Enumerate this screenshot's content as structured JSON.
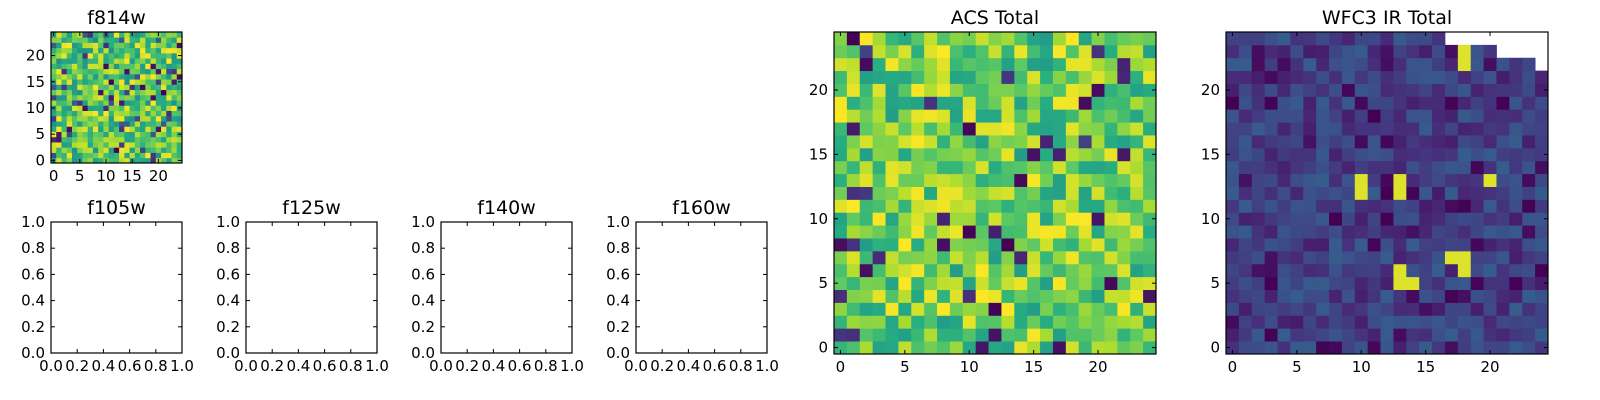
{
  "chart_data": [
    {
      "id": "f814w",
      "type": "heatmap",
      "title": "f814w",
      "grid_size": [
        25,
        25
      ],
      "xlim": [
        -0.5,
        24.5
      ],
      "ylim": [
        -0.5,
        24.5
      ],
      "xticks": [
        "0",
        "5",
        "10",
        "15",
        "20"
      ],
      "yticks": [
        "0",
        "5",
        "10",
        "15",
        "20"
      ],
      "colormap": "viridis",
      "note_values": "random-like high-valued texture (mostly green/yellow)",
      "seed": 3
    },
    {
      "id": "f105w",
      "type": "empty",
      "title": "f105w",
      "xlim": [
        0,
        1
      ],
      "ylim": [
        0,
        1
      ],
      "xticks": [
        "0.0",
        "0.2",
        "0.4",
        "0.6",
        "0.8",
        "1.0"
      ],
      "yticks": [
        "0.0",
        "0.2",
        "0.4",
        "0.6",
        "0.8",
        "1.0"
      ]
    },
    {
      "id": "f125w",
      "type": "empty",
      "title": "f125w",
      "xlim": [
        0,
        1
      ],
      "ylim": [
        0,
        1
      ],
      "xticks": [
        "0.0",
        "0.2",
        "0.4",
        "0.6",
        "0.8",
        "1.0"
      ],
      "yticks": [
        "0.0",
        "0.2",
        "0.4",
        "0.6",
        "0.8",
        "1.0"
      ]
    },
    {
      "id": "f140w",
      "type": "empty",
      "title": "f140w",
      "xlim": [
        0,
        1
      ],
      "ylim": [
        0,
        1
      ],
      "xticks": [
        "0.0",
        "0.2",
        "0.4",
        "0.6",
        "0.8",
        "1.0"
      ],
      "yticks": [
        "0.0",
        "0.2",
        "0.4",
        "0.6",
        "0.8",
        "1.0"
      ]
    },
    {
      "id": "f160w",
      "type": "empty",
      "title": "f160w",
      "xlim": [
        0,
        1
      ],
      "ylim": [
        0,
        1
      ],
      "xticks": [
        "0.0",
        "0.2",
        "0.4",
        "0.6",
        "0.8",
        "1.0"
      ],
      "yticks": [
        "0.0",
        "0.2",
        "0.4",
        "0.6",
        "0.8",
        "1.0"
      ]
    },
    {
      "id": "acs-total",
      "type": "heatmap",
      "title": "ACS Total",
      "grid_size": [
        25,
        25
      ],
      "xlim": [
        -0.5,
        24.5
      ],
      "ylim": [
        -0.5,
        24.5
      ],
      "xticks": [
        "0",
        "5",
        "10",
        "15",
        "20"
      ],
      "yticks": [
        "0",
        "5",
        "10",
        "15",
        "20"
      ],
      "colormap": "viridis",
      "seed": 11
    },
    {
      "id": "wfc3-ir-total",
      "type": "heatmap",
      "title": "WFC3 IR Total",
      "grid_size": [
        25,
        25
      ],
      "xlim": [
        -0.5,
        24.5
      ],
      "ylim": [
        -0.5,
        24.5
      ],
      "xticks": [
        "0",
        "5",
        "10",
        "15",
        "20"
      ],
      "yticks": [
        "0",
        "5",
        "10",
        "15",
        "20"
      ],
      "colormap": "viridis",
      "seed": 29,
      "bright_pixels": [
        [
          10,
          12
        ],
        [
          10,
          13
        ],
        [
          13,
          12
        ],
        [
          13,
          13
        ],
        [
          18,
          6
        ],
        [
          18,
          7
        ],
        [
          17,
          7
        ],
        [
          13,
          5
        ],
        [
          14,
          5
        ],
        [
          18,
          23
        ],
        [
          18,
          22
        ],
        [
          20,
          13
        ],
        [
          13,
          6
        ]
      ],
      "missing_region_note": "top-right corner masked (white)"
    }
  ]
}
